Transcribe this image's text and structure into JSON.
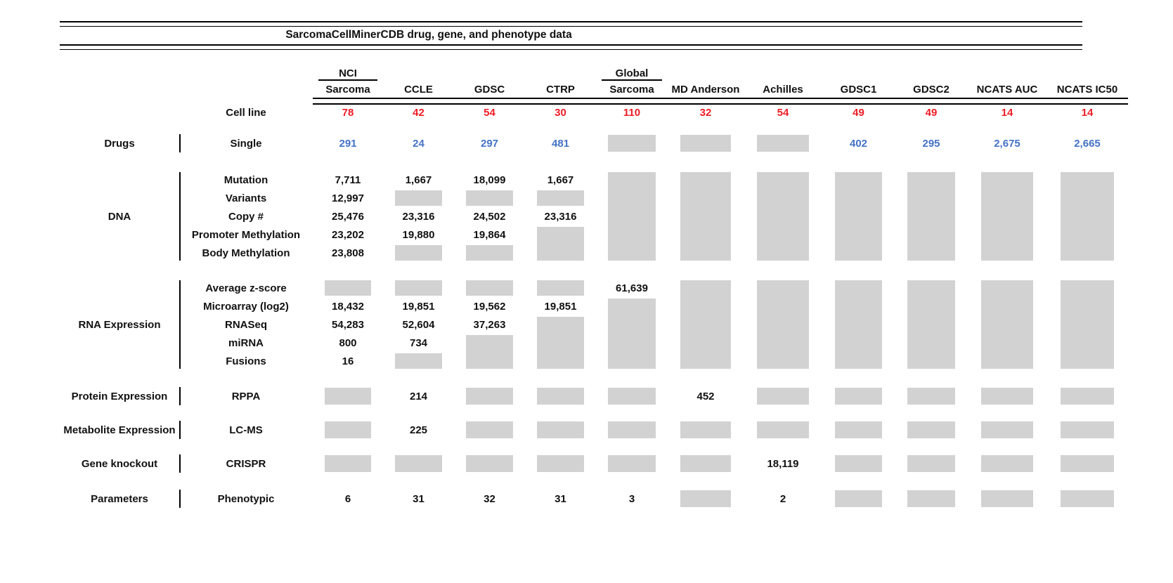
{
  "colors": {
    "red": "#ee1c25",
    "blue": "#4472c4",
    "gray_box": "#d2d2d2",
    "text": "#111111"
  },
  "chart_data": {
    "type": "table",
    "title": "SarcomaCellMinerCDB drug, gene, and phenotype data",
    "cell_line_row_label": "Cell line",
    "gray_marker": "[gray]",
    "gray_meaning": "data not available",
    "columns": [
      {
        "id": "nci-sarcoma",
        "line1": "NCI",
        "line2": "Sarcoma",
        "cell_lines": "78"
      },
      {
        "id": "ccle",
        "line1": "",
        "line2": "CCLE",
        "cell_lines": "42"
      },
      {
        "id": "gdsc",
        "line1": "",
        "line2": "GDSC",
        "cell_lines": "54"
      },
      {
        "id": "ctrp",
        "line1": "",
        "line2": "CTRP",
        "cell_lines": "30"
      },
      {
        "id": "global-sarcoma",
        "line1": "Global",
        "line2": "Sarcoma",
        "cell_lines": "110"
      },
      {
        "id": "md-anderson",
        "line1": "",
        "line2": "MD Anderson",
        "cell_lines": "32"
      },
      {
        "id": "achilles",
        "line1": "",
        "line2": "Achilles",
        "cell_lines": "54"
      },
      {
        "id": "gdsc1",
        "line1": "",
        "line2": "GDSC1",
        "cell_lines": "49"
      },
      {
        "id": "gdsc2",
        "line1": "",
        "line2": "GDSC2",
        "cell_lines": "49"
      },
      {
        "id": "ncats-auc",
        "line1": "",
        "line2": "NCATS AUC",
        "cell_lines": "14"
      },
      {
        "id": "ncats-ic50",
        "line1": "",
        "line2": "NCATS IC50",
        "cell_lines": "14"
      }
    ],
    "sections": [
      {
        "id": "drugs",
        "group": "Drugs",
        "value_color": "blue",
        "rows": [
          {
            "label": "Single",
            "cells": [
              "291",
              "24",
              "297",
              "481",
              "[gray]",
              "[gray]",
              "[gray]",
              "402",
              "295",
              "2,675",
              "2,665"
            ]
          }
        ],
        "gray_spans": []
      },
      {
        "id": "dna",
        "group": "DNA",
        "value_color": "black",
        "rows": [
          {
            "label": "Mutation",
            "cells": [
              "7,711",
              "1,667",
              "18,099",
              "1,667",
              "",
              "",
              "",
              "",
              "",
              "",
              ""
            ]
          },
          {
            "label": "Variants",
            "cells": [
              "12,997",
              "[gray]",
              "[gray]",
              "[gray]",
              "",
              "",
              "",
              "",
              "",
              "",
              ""
            ]
          },
          {
            "label": "Copy #",
            "cells": [
              "25,476",
              "23,316",
              "24,502",
              "23,316",
              "",
              "",
              "",
              "",
              "",
              "",
              ""
            ]
          },
          {
            "label": "Promoter Methylation",
            "cells": [
              "23,202",
              "19,880",
              "19,864",
              "",
              "",
              "",
              "",
              "",
              "",
              "",
              ""
            ]
          },
          {
            "label": "Body Methylation",
            "cells": [
              "23,808",
              "[gray]",
              "[gray]",
              "",
              "",
              "",
              "",
              "",
              "",
              "",
              ""
            ]
          }
        ],
        "gray_spans": [
          {
            "col": 3,
            "row_start": 4,
            "row_end": 5
          },
          {
            "col": 4,
            "row_start": 1,
            "row_end": 5
          },
          {
            "col": 5,
            "row_start": 1,
            "row_end": 5
          },
          {
            "col": 6,
            "row_start": 1,
            "row_end": 5
          },
          {
            "col": 7,
            "row_start": 1,
            "row_end": 5
          },
          {
            "col": 8,
            "row_start": 1,
            "row_end": 5
          },
          {
            "col": 9,
            "row_start": 1,
            "row_end": 5
          },
          {
            "col": 10,
            "row_start": 1,
            "row_end": 5
          }
        ]
      },
      {
        "id": "rna",
        "group": "RNA Expression",
        "value_color": "black",
        "rows": [
          {
            "label": "Average z-score",
            "cells": [
              "[gray]",
              "[gray]",
              "[gray]",
              "[gray]",
              "61,639",
              "",
              "",
              "",
              "",
              "",
              ""
            ]
          },
          {
            "label": "Microarray (log2)",
            "cells": [
              "18,432",
              "19,851",
              "19,562",
              "19,851",
              "",
              "",
              "",
              "",
              "",
              "",
              ""
            ]
          },
          {
            "label": "RNASeq",
            "cells": [
              "54,283",
              "52,604",
              "37,263",
              "",
              "",
              "",
              "",
              "",
              "",
              "",
              ""
            ]
          },
          {
            "label": "miRNA",
            "cells": [
              "800",
              "734",
              "",
              "",
              "",
              "",
              "",
              "",
              "",
              "",
              ""
            ]
          },
          {
            "label": "Fusions",
            "cells": [
              "16",
              "[gray]",
              "",
              "",
              "",
              "",
              "",
              "",
              "",
              "",
              ""
            ]
          }
        ],
        "gray_spans": [
          {
            "col": 2,
            "row_start": 4,
            "row_end": 5
          },
          {
            "col": 3,
            "row_start": 3,
            "row_end": 5
          },
          {
            "col": 4,
            "row_start": 2,
            "row_end": 5
          },
          {
            "col": 5,
            "row_start": 1,
            "row_end": 5
          },
          {
            "col": 6,
            "row_start": 1,
            "row_end": 5
          },
          {
            "col": 7,
            "row_start": 1,
            "row_end": 5
          },
          {
            "col": 8,
            "row_start": 1,
            "row_end": 5
          },
          {
            "col": 9,
            "row_start": 1,
            "row_end": 5
          },
          {
            "col": 10,
            "row_start": 1,
            "row_end": 5
          }
        ]
      },
      {
        "id": "protein",
        "group": "Protein Expression",
        "value_color": "black",
        "rows": [
          {
            "label": "RPPA",
            "cells": [
              "[gray]",
              "214",
              "[gray]",
              "[gray]",
              "[gray]",
              "452",
              "[gray]",
              "[gray]",
              "[gray]",
              "[gray]",
              "[gray]"
            ]
          }
        ],
        "gray_spans": []
      },
      {
        "id": "metabolite",
        "group": "Metabolite Expression",
        "value_color": "black",
        "rows": [
          {
            "label": "LC-MS",
            "cells": [
              "[gray]",
              "225",
              "[gray]",
              "[gray]",
              "[gray]",
              "[gray]",
              "[gray]",
              "[gray]",
              "[gray]",
              "[gray]",
              "[gray]"
            ]
          }
        ],
        "gray_spans": []
      },
      {
        "id": "knockout",
        "group": "Gene knockout",
        "value_color": "black",
        "rows": [
          {
            "label": "CRISPR",
            "cells": [
              "[gray]",
              "[gray]",
              "[gray]",
              "[gray]",
              "[gray]",
              "[gray]",
              "18,119",
              "[gray]",
              "[gray]",
              "[gray]",
              "[gray]"
            ]
          }
        ],
        "gray_spans": []
      },
      {
        "id": "parameters",
        "group": "Parameters",
        "value_color": "black",
        "rows": [
          {
            "label": "Phenotypic",
            "cells": [
              "6",
              "31",
              "32",
              "31",
              "3",
              "[gray]",
              "2",
              "[gray]",
              "[gray]",
              "[gray]",
              "[gray]"
            ]
          }
        ],
        "gray_spans": []
      }
    ]
  }
}
